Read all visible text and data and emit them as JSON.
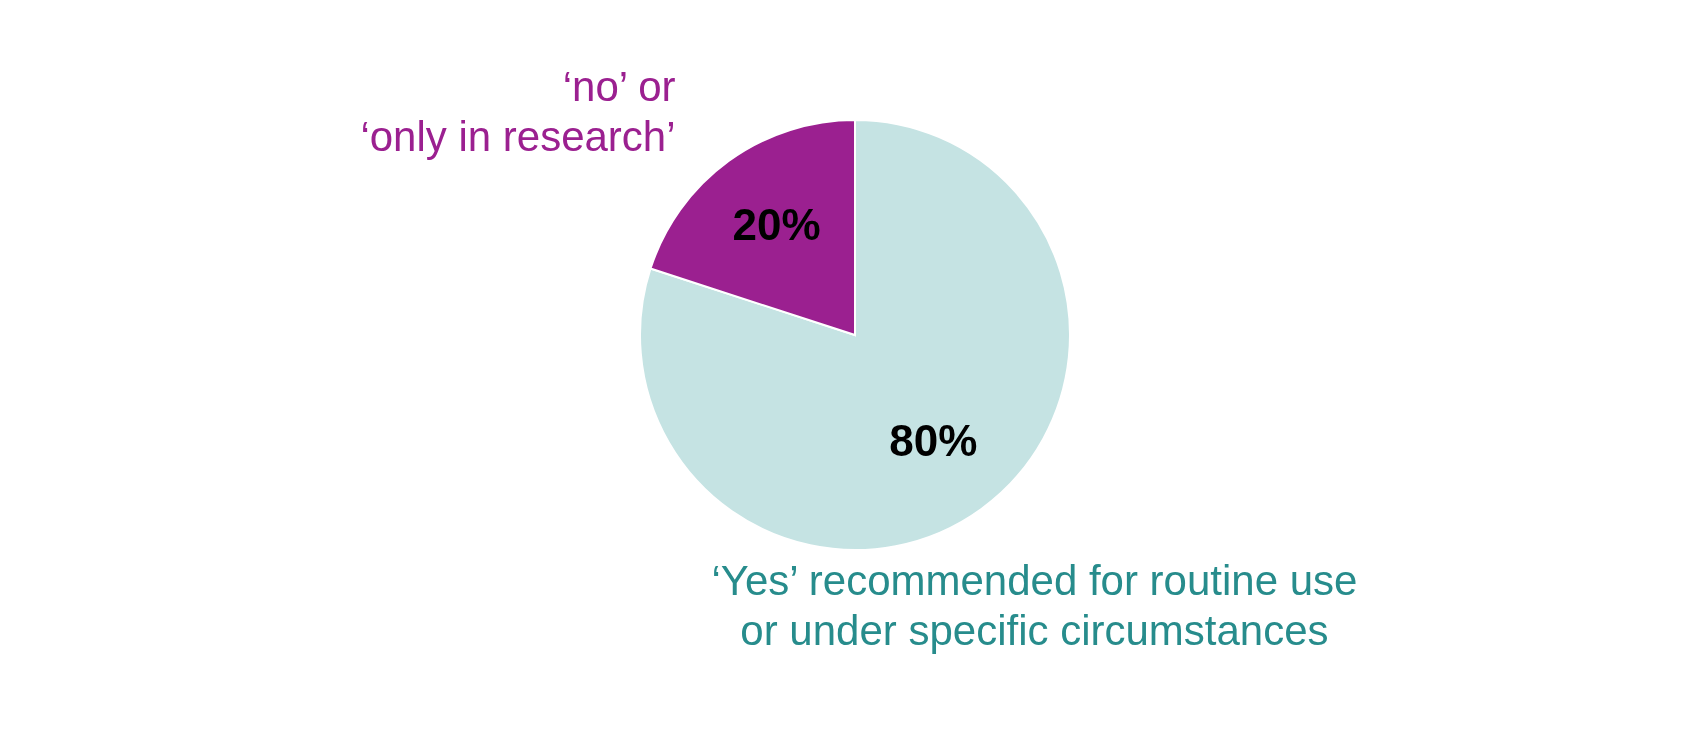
{
  "chart_data": {
    "type": "pie",
    "categories": [
      "‘Yes’ recommended for routine use\nor under specific circumstances",
      "‘no’ or\n‘only in research’"
    ],
    "values": [
      80,
      20
    ],
    "colors": [
      "#c5e3e3",
      "#9b2090"
    ],
    "value_labels": [
      "80%",
      "20%"
    ],
    "legend": false
  }
}
